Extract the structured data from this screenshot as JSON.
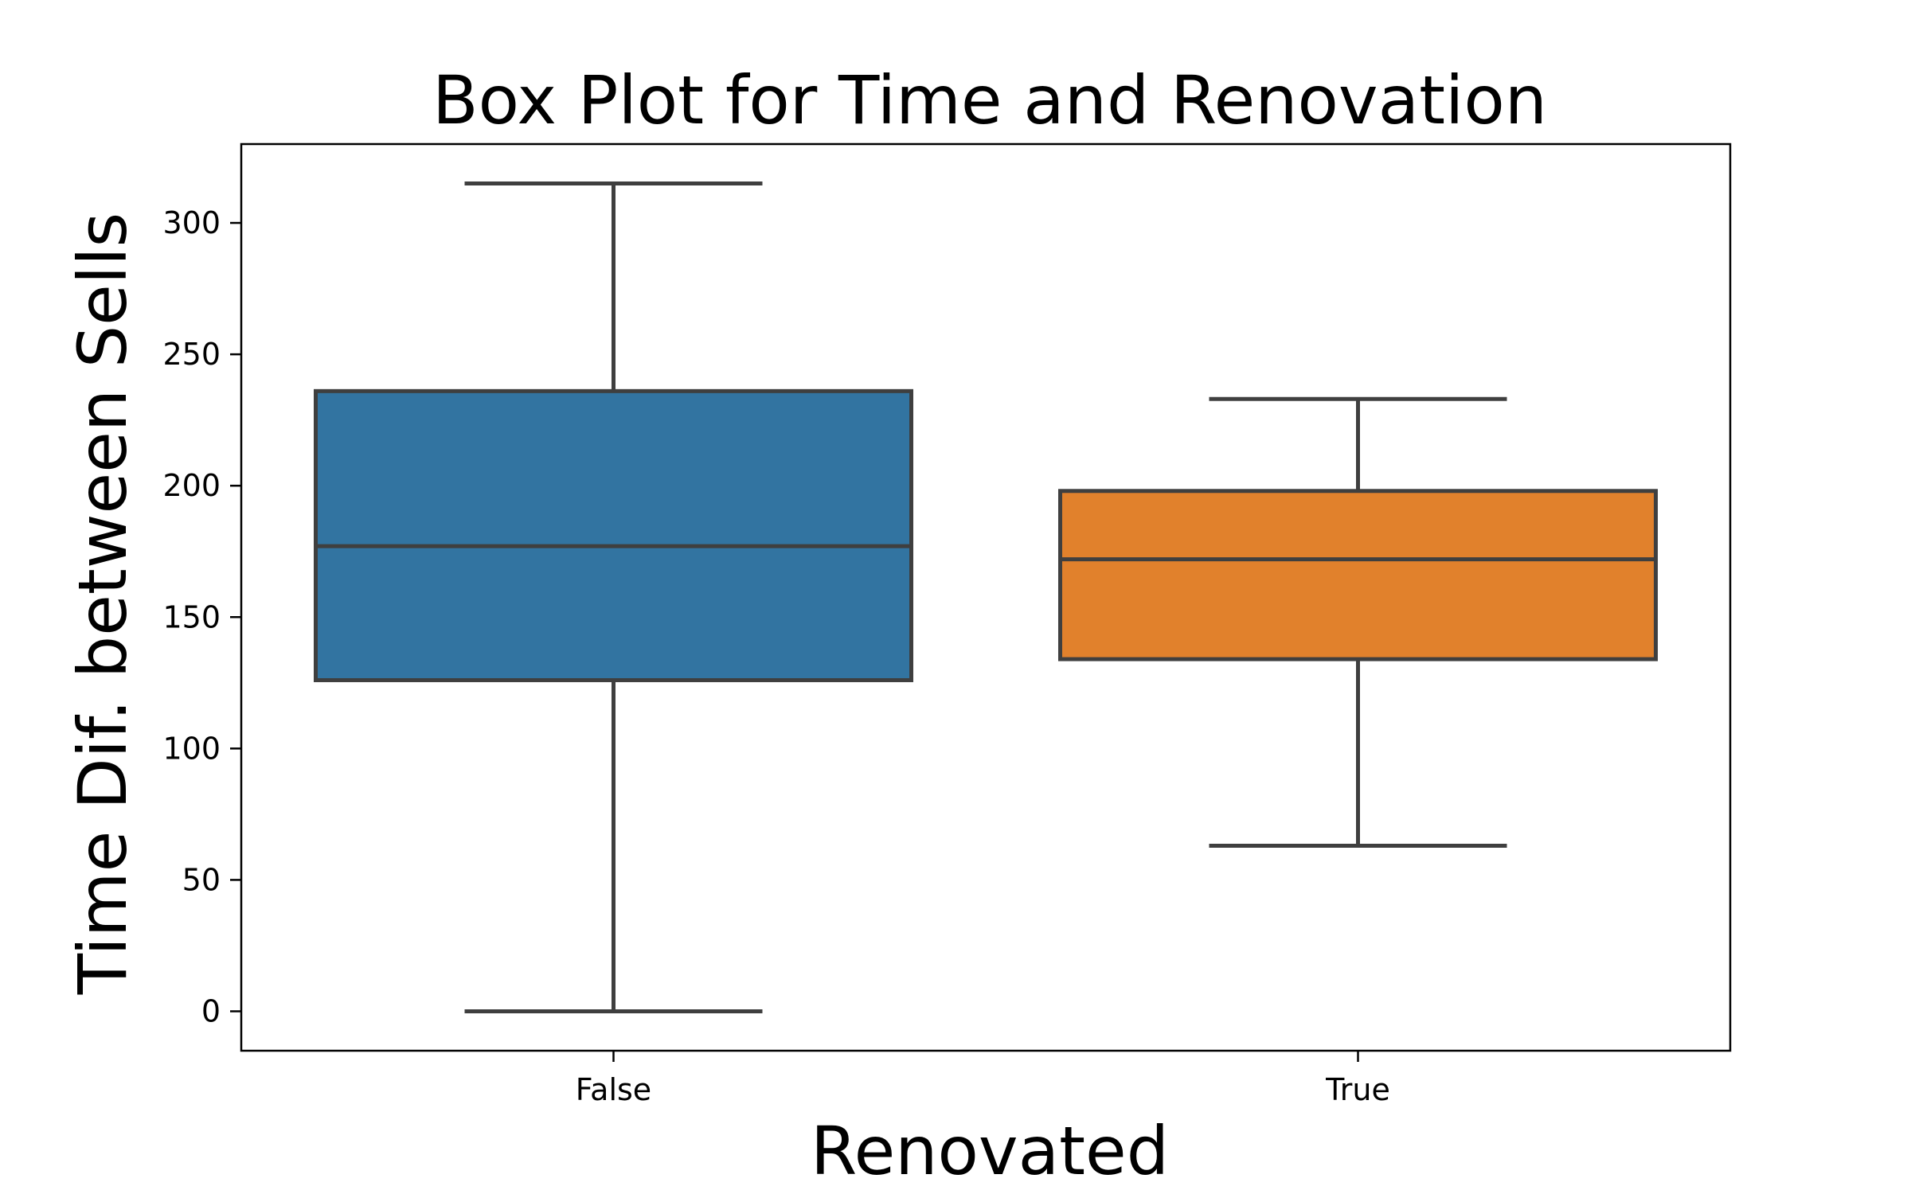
{
  "chart_data": {
    "type": "box",
    "title": "Box Plot for Time and Renovation",
    "xlabel": "Renovated",
    "ylabel": "Time Dif. between Sells",
    "ylim": [
      -15,
      330
    ],
    "yticks": [
      0,
      50,
      100,
      150,
      200,
      250,
      300
    ],
    "categories": [
      "False",
      "True"
    ],
    "boxes": [
      {
        "category": "False",
        "whisker_low": 0,
        "q1": 126,
        "median": 177,
        "q3": 236,
        "whisker_high": 315,
        "color": "#3274a1"
      },
      {
        "category": "True",
        "whisker_low": 63,
        "q1": 134,
        "median": 172,
        "q3": 198,
        "whisker_high": 233,
        "color": "#e1812c"
      }
    ],
    "grid": false,
    "colors": {
      "line": "#3f3f3f",
      "frame": "#000000"
    }
  }
}
